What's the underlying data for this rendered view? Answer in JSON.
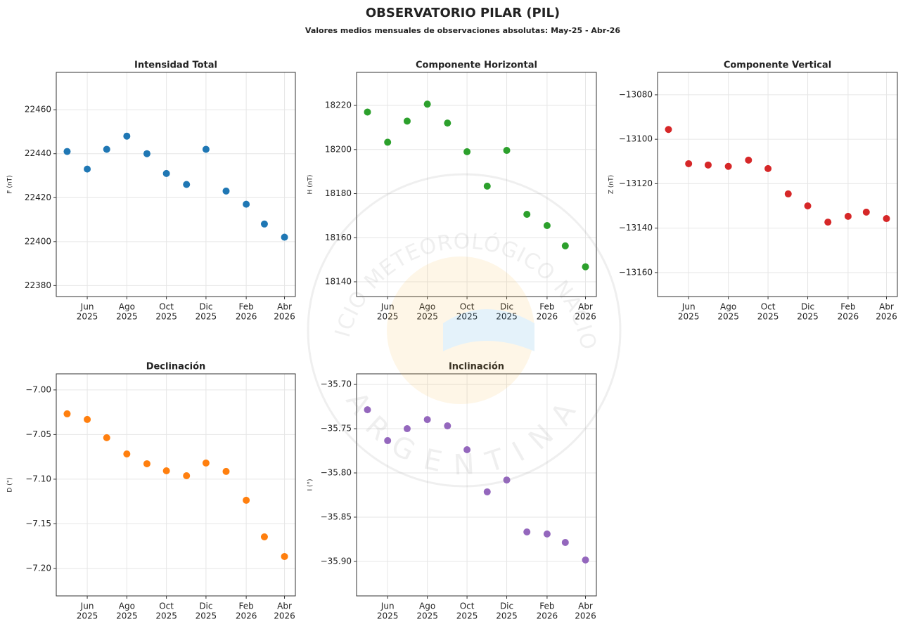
{
  "title": "OBSERVATORIO PILAR (PIL)",
  "subtitle": "Valores medios mensuales de observaciones absolutas: May-25 - Abr-26",
  "watermark": {
    "top": "SERVICIO METEOROLÓGICO NACIONAL",
    "bottom": "ARGENTINA"
  },
  "chart_data": [
    {
      "type": "scatter",
      "title": "Intensidad Total",
      "ylabel": "F (nT)",
      "color": "#1f77b4",
      "grid": true,
      "x": [
        "2025-05",
        "2025-06",
        "2025-07",
        "2025-08",
        "2025-09",
        "2025-10",
        "2025-11",
        "2025-12",
        "2026-01",
        "2026-02",
        "2026-03",
        "2026-04"
      ],
      "values": [
        22441,
        22433,
        22442,
        22448,
        22440,
        22431,
        22426,
        22442,
        22423,
        22417,
        22408,
        22402
      ],
      "ylim": [
        22375,
        22477
      ],
      "yticks": [
        22380,
        22400,
        22420,
        22440,
        22460
      ],
      "xticks": [
        {
          "value": "2025-06",
          "label": [
            "Jun",
            "2025"
          ]
        },
        {
          "value": "2025-08",
          "label": [
            "Ago",
            "2025"
          ]
        },
        {
          "value": "2025-10",
          "label": [
            "Oct",
            "2025"
          ]
        },
        {
          "value": "2025-12",
          "label": [
            "Dic",
            "2025"
          ]
        },
        {
          "value": "2026-02",
          "label": [
            "Feb",
            "2026"
          ]
        },
        {
          "value": "2026-04",
          "label": [
            "Abr",
            "2026"
          ]
        }
      ]
    },
    {
      "type": "scatter",
      "title": "Componente Horizontal",
      "ylabel": "H (nT)",
      "color": "#2ca02c",
      "grid": true,
      "x": [
        "2025-05",
        "2025-06",
        "2025-07",
        "2025-08",
        "2025-09",
        "2025-10",
        "2025-11",
        "2025-12",
        "2026-01",
        "2026-02",
        "2026-03",
        "2026-04"
      ],
      "values": [
        18217,
        18203.3,
        18212.9,
        18220.6,
        18212,
        18199,
        18183.4,
        18199.6,
        18170.6,
        18165.5,
        18156.3,
        18146.8
      ],
      "ylim": [
        18133.3,
        18235
      ],
      "yticks": [
        18140,
        18160,
        18180,
        18200,
        18220
      ],
      "xticks": [
        {
          "value": "2025-06",
          "label": [
            "Jun",
            "2025"
          ]
        },
        {
          "value": "2025-08",
          "label": [
            "Ago",
            "2025"
          ]
        },
        {
          "value": "2025-10",
          "label": [
            "Oct",
            "2025"
          ]
        },
        {
          "value": "2025-12",
          "label": [
            "Dic",
            "2025"
          ]
        },
        {
          "value": "2026-02",
          "label": [
            "Feb",
            "2026"
          ]
        },
        {
          "value": "2026-04",
          "label": [
            "Abr",
            "2026"
          ]
        }
      ]
    },
    {
      "type": "scatter",
      "title": "Componente Vertical",
      "ylabel": "Z (nT)",
      "color": "#d62728",
      "grid": true,
      "x": [
        "2025-05",
        "2025-06",
        "2025-07",
        "2025-08",
        "2025-09",
        "2025-10",
        "2025-11",
        "2025-12",
        "2026-01",
        "2026-02",
        "2026-03",
        "2026-04"
      ],
      "values": [
        -13095.6,
        -13111,
        -13111.6,
        -13112.2,
        -13109.4,
        -13113.2,
        -13124.6,
        -13130,
        -13137.3,
        -13134.7,
        -13132.8,
        -13135.7
      ],
      "ylim": [
        -13170.8,
        -13069.9
      ],
      "yticks": [
        {
          "value": -13160,
          "label": "−13160"
        },
        {
          "value": -13140,
          "label": "−13140"
        },
        {
          "value": -13120,
          "label": "−13120"
        },
        {
          "value": -13100,
          "label": "−13100"
        },
        {
          "value": -13080,
          "label": "−13080"
        }
      ],
      "xticks": [
        {
          "value": "2025-06",
          "label": [
            "Jun",
            "2025"
          ]
        },
        {
          "value": "2025-08",
          "label": [
            "Ago",
            "2025"
          ]
        },
        {
          "value": "2025-10",
          "label": [
            "Oct",
            "2025"
          ]
        },
        {
          "value": "2025-12",
          "label": [
            "Dic",
            "2025"
          ]
        },
        {
          "value": "2026-02",
          "label": [
            "Feb",
            "2026"
          ]
        },
        {
          "value": "2026-04",
          "label": [
            "Abr",
            "2026"
          ]
        }
      ]
    },
    {
      "type": "scatter",
      "title": "Declinación",
      "ylabel": "D (°)",
      "color": "#ff7f0e",
      "grid": true,
      "x": [
        "2025-05",
        "2025-06",
        "2025-07",
        "2025-08",
        "2025-09",
        "2025-10",
        "2025-11",
        "2025-12",
        "2026-01",
        "2026-02",
        "2026-03",
        "2026-04"
      ],
      "values": [
        -7.0268,
        -7.0331,
        -7.0535,
        -7.0717,
        -7.0827,
        -7.0906,
        -7.0961,
        -7.0819,
        -7.0913,
        -7.1236,
        -7.1646,
        -7.1866
      ],
      "ylim": [
        -7.2307,
        -6.982
      ],
      "yticks": [
        {
          "value": -7.2,
          "label": "−7.20"
        },
        {
          "value": -7.15,
          "label": "−7.15"
        },
        {
          "value": -7.1,
          "label": "−7.10"
        },
        {
          "value": -7.05,
          "label": "−7.05"
        },
        {
          "value": -7,
          "label": "−7.00"
        }
      ],
      "xticks": [
        {
          "value": "2025-06",
          "label": [
            "Jun",
            "2025"
          ]
        },
        {
          "value": "2025-08",
          "label": [
            "Ago",
            "2025"
          ]
        },
        {
          "value": "2025-10",
          "label": [
            "Oct",
            "2025"
          ]
        },
        {
          "value": "2025-12",
          "label": [
            "Dic",
            "2025"
          ]
        },
        {
          "value": "2026-02",
          "label": [
            "Feb",
            "2026"
          ]
        },
        {
          "value": "2026-04",
          "label": [
            "Abr",
            "2026"
          ]
        }
      ]
    },
    {
      "type": "scatter",
      "title": "Inclinación",
      "ylabel": "I (°)",
      "color": "#9467bd",
      "grid": true,
      "x": [
        "2025-05",
        "2025-06",
        "2025-07",
        "2025-08",
        "2025-09",
        "2025-10",
        "2025-11",
        "2025-12",
        "2026-01",
        "2026-02",
        "2026-03",
        "2026-04"
      ],
      "values": [
        -35.7286,
        -35.7635,
        -35.75,
        -35.7397,
        -35.7468,
        -35.7738,
        -35.8214,
        -35.808,
        -35.8667,
        -35.869,
        -35.8786,
        -35.8984
      ],
      "ylim": [
        -35.939,
        -35.688
      ],
      "yticks": [
        {
          "value": -35.9,
          "label": "−35.90"
        },
        {
          "value": -35.85,
          "label": "−35.85"
        },
        {
          "value": -35.8,
          "label": "−35.80"
        },
        {
          "value": -35.75,
          "label": "−35.75"
        },
        {
          "value": -35.7,
          "label": "−35.70"
        }
      ],
      "xticks": [
        {
          "value": "2025-06",
          "label": [
            "Jun",
            "2025"
          ]
        },
        {
          "value": "2025-08",
          "label": [
            "Ago",
            "2025"
          ]
        },
        {
          "value": "2025-10",
          "label": [
            "Oct",
            "2025"
          ]
        },
        {
          "value": "2025-12",
          "label": [
            "Dic",
            "2025"
          ]
        },
        {
          "value": "2026-02",
          "label": [
            "Feb",
            "2026"
          ]
        },
        {
          "value": "2026-04",
          "label": [
            "Abr",
            "2026"
          ]
        }
      ]
    }
  ]
}
